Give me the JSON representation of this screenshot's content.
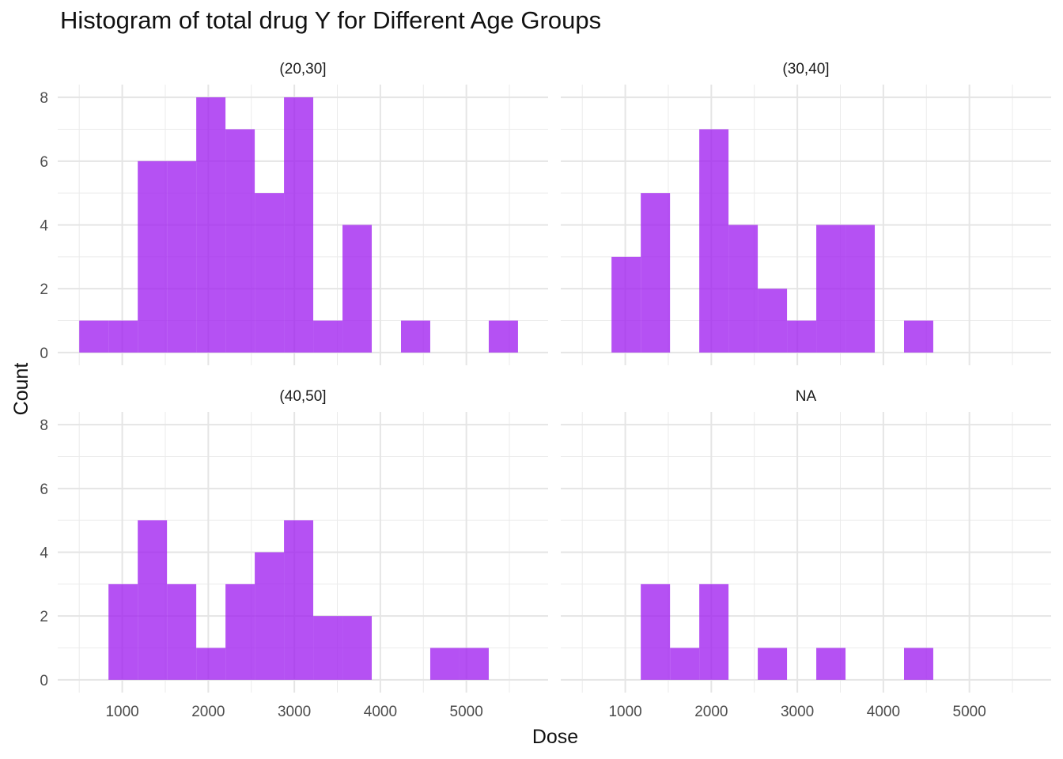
{
  "chart_data": {
    "type": "bar",
    "title": "Histogram of total drug Y for Different Age Groups",
    "xlabel": "Dose",
    "ylabel": "Count",
    "bin_width": 340,
    "bin_starts": [
      500,
      840,
      1180,
      1520,
      1860,
      2200,
      2540,
      2880,
      3220,
      3560,
      3900,
      4240,
      4580,
      4920,
      5260
    ],
    "xlim": [
      250,
      5950
    ],
    "ylim": [
      -0.4,
      8.4
    ],
    "x_ticks": [
      1000,
      2000,
      3000,
      4000,
      5000
    ],
    "y_ticks": [
      0,
      2,
      4,
      6,
      8
    ],
    "grid": true,
    "bar_color": "#A020F0",
    "facets": [
      {
        "name": "(20,30]",
        "counts": [
          1,
          1,
          6,
          6,
          8,
          7,
          5,
          8,
          1,
          4,
          0,
          1,
          0,
          0,
          1
        ]
      },
      {
        "name": "(30,40]",
        "counts": [
          0,
          3,
          5,
          0,
          7,
          4,
          2,
          1,
          4,
          4,
          0,
          1,
          0,
          0,
          0
        ]
      },
      {
        "name": "(40,50]",
        "counts": [
          0,
          3,
          5,
          3,
          1,
          3,
          4,
          5,
          2,
          2,
          0,
          0,
          1,
          1,
          0
        ]
      },
      {
        "name": "NA",
        "counts": [
          0,
          0,
          3,
          1,
          3,
          0,
          1,
          0,
          1,
          0,
          0,
          1,
          0,
          0,
          0
        ]
      }
    ]
  }
}
